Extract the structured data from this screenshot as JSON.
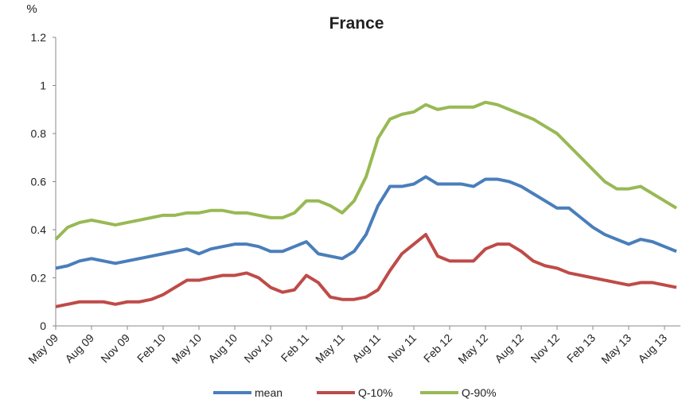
{
  "chart_data": {
    "type": "line",
    "title": "France",
    "y_label": "%",
    "categories": [
      "May 09",
      null,
      null,
      "Aug 09",
      null,
      null,
      "Nov 09",
      null,
      null,
      "Feb 10",
      null,
      null,
      "May 10",
      null,
      null,
      "Aug 10",
      null,
      null,
      "Nov 10",
      null,
      null,
      "Feb 11",
      null,
      null,
      "May 11",
      null,
      null,
      "Aug 11",
      null,
      null,
      "Nov 11",
      null,
      null,
      "Feb 12",
      null,
      null,
      "May 12",
      null,
      null,
      "Aug 12",
      null,
      null,
      "Nov 12",
      null,
      null,
      "Feb 13",
      null,
      null,
      "May 13",
      null,
      null,
      "Aug 13",
      null
    ],
    "series": [
      {
        "name": "mean",
        "color": "#4a7ebb",
        "values": [
          0.24,
          0.25,
          0.27,
          0.28,
          0.27,
          0.26,
          0.27,
          0.28,
          0.29,
          0.3,
          0.31,
          0.32,
          0.3,
          0.32,
          0.33,
          0.34,
          0.34,
          0.33,
          0.31,
          0.31,
          0.33,
          0.35,
          0.3,
          0.29,
          0.28,
          0.31,
          0.38,
          0.5,
          0.58,
          0.58,
          0.59,
          0.62,
          0.59,
          0.59,
          0.59,
          0.58,
          0.61,
          0.61,
          0.6,
          0.58,
          0.55,
          0.52,
          0.49,
          0.49,
          0.45,
          0.41,
          0.38,
          0.36,
          0.34,
          0.36,
          0.35,
          0.33,
          0.31
        ]
      },
      {
        "name": "Q-10%",
        "color": "#be4b48",
        "values": [
          0.08,
          0.09,
          0.1,
          0.1,
          0.1,
          0.09,
          0.1,
          0.1,
          0.11,
          0.13,
          0.16,
          0.19,
          0.19,
          0.2,
          0.21,
          0.21,
          0.22,
          0.2,
          0.16,
          0.14,
          0.15,
          0.21,
          0.18,
          0.12,
          0.11,
          0.11,
          0.12,
          0.15,
          0.23,
          0.3,
          0.34,
          0.38,
          0.29,
          0.27,
          0.27,
          0.27,
          0.32,
          0.34,
          0.34,
          0.31,
          0.27,
          0.25,
          0.24,
          0.22,
          0.21,
          0.2,
          0.19,
          0.18,
          0.17,
          0.18,
          0.18,
          0.17,
          0.16
        ]
      },
      {
        "name": "Q-90%",
        "color": "#98b954",
        "values": [
          0.36,
          0.41,
          0.43,
          0.44,
          0.43,
          0.42,
          0.43,
          0.44,
          0.45,
          0.46,
          0.46,
          0.47,
          0.47,
          0.48,
          0.48,
          0.47,
          0.47,
          0.46,
          0.45,
          0.45,
          0.47,
          0.52,
          0.52,
          0.5,
          0.47,
          0.52,
          0.62,
          0.78,
          0.86,
          0.88,
          0.89,
          0.92,
          0.9,
          0.91,
          0.91,
          0.91,
          0.93,
          0.92,
          0.9,
          0.88,
          0.86,
          0.83,
          0.8,
          0.75,
          0.7,
          0.65,
          0.6,
          0.57,
          0.57,
          0.58,
          0.55,
          0.52,
          0.49
        ]
      }
    ],
    "ylim": [
      0,
      1.2
    ],
    "yticks": [
      0,
      0.2,
      0.4,
      0.6,
      0.8,
      1,
      1.2
    ],
    "grid": false,
    "legend": "bottom"
  }
}
